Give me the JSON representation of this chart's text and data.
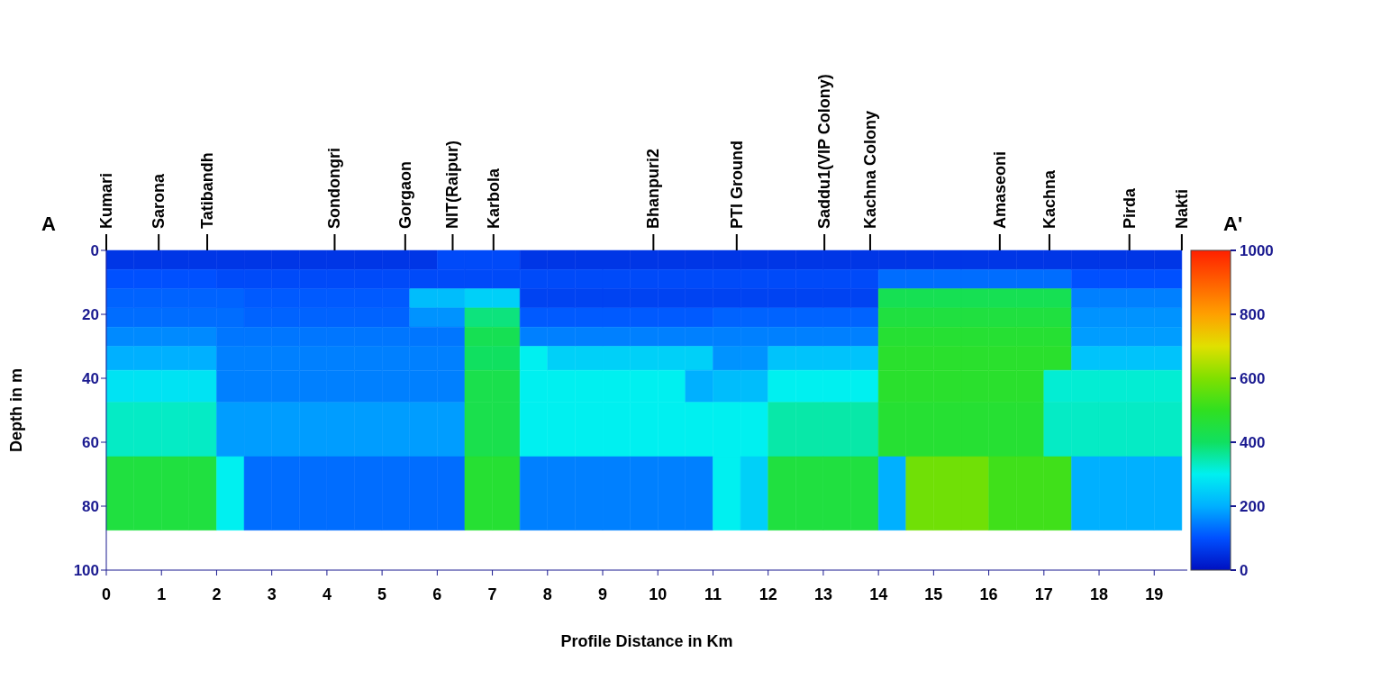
{
  "chart_data": {
    "type": "heatmap",
    "xlabel": "Profile Distance  in Km",
    "ylabel": "Depth in m",
    "annotations": [
      "A",
      "A'"
    ],
    "ref_lines": [
      {
        "axis": "x",
        "value": 0,
        "label": "Kumari"
      },
      {
        "axis": "x",
        "value": 0.95,
        "label": "Sarona"
      },
      {
        "axis": "x",
        "value": 1.83,
        "label": "Tatibandh"
      },
      {
        "axis": "x",
        "value": 4.14,
        "label": "Sondongri"
      },
      {
        "axis": "x",
        "value": 5.42,
        "label": "Gorgaon"
      },
      {
        "axis": "x",
        "value": 6.28,
        "label": "NIT(Raipur)"
      },
      {
        "axis": "x",
        "value": 7.02,
        "label": "Karbola"
      },
      {
        "axis": "x",
        "value": 9.92,
        "label": "Bhanpuri2"
      },
      {
        "axis": "x",
        "value": 11.43,
        "label": "PTI Ground"
      },
      {
        "axis": "x",
        "value": 13.02,
        "label": "Saddu1(VIP Colony)"
      },
      {
        "axis": "x",
        "value": 13.85,
        "label": "Kachna Colony"
      },
      {
        "axis": "x",
        "value": 16.2,
        "label": "Amaseoni"
      },
      {
        "axis": "x",
        "value": 17.1,
        "label": "Kachna"
      },
      {
        "axis": "x",
        "value": 18.55,
        "label": "Pirda"
      },
      {
        "axis": "x",
        "value": 19.5,
        "label": "Nakti"
      }
    ],
    "x": [
      0.25,
      0.75,
      1.25,
      1.75,
      2.25,
      2.75,
      3.25,
      3.75,
      4.25,
      4.75,
      5.25,
      5.75,
      6.25,
      6.75,
      7.25,
      7.75,
      8.25,
      8.75,
      9.25,
      9.75,
      10.25,
      10.75,
      11.25,
      11.75,
      12.25,
      12.75,
      13.25,
      13.75,
      14.25,
      14.75,
      15.25,
      15.75,
      16.25,
      16.75,
      17.25,
      17.75,
      18.25,
      18.75,
      19.25
    ],
    "y": [
      3,
      9,
      15,
      21,
      27,
      33,
      42,
      53,
      76
    ],
    "cells": [
      [
        60,
        60,
        60,
        60,
        60,
        60,
        60,
        60,
        60,
        60,
        60,
        60,
        90,
        90,
        90,
        60,
        60,
        60,
        60,
        60,
        60,
        60,
        60,
        60,
        60,
        60,
        60,
        60,
        60,
        60,
        60,
        60,
        60,
        60,
        60,
        60,
        60,
        60,
        60
      ],
      [
        100,
        100,
        100,
        100,
        90,
        90,
        90,
        90,
        90,
        90,
        90,
        90,
        90,
        90,
        90,
        90,
        90,
        90,
        90,
        90,
        90,
        90,
        90,
        90,
        90,
        90,
        90,
        90,
        130,
        130,
        130,
        130,
        130,
        130,
        130,
        100,
        100,
        100,
        100
      ],
      [
        120,
        120,
        120,
        120,
        120,
        110,
        110,
        110,
        110,
        110,
        110,
        220,
        220,
        250,
        250,
        80,
        80,
        80,
        80,
        80,
        80,
        80,
        80,
        80,
        80,
        80,
        80,
        80,
        420,
        420,
        420,
        420,
        420,
        420,
        420,
        150,
        150,
        150,
        150
      ],
      [
        130,
        130,
        130,
        130,
        130,
        120,
        120,
        120,
        120,
        120,
        120,
        170,
        170,
        380,
        380,
        110,
        110,
        110,
        110,
        110,
        110,
        110,
        120,
        120,
        120,
        120,
        120,
        120,
        450,
        450,
        450,
        450,
        450,
        450,
        450,
        170,
        170,
        170,
        170
      ],
      [
        160,
        160,
        160,
        160,
        140,
        140,
        140,
        140,
        140,
        140,
        140,
        140,
        140,
        420,
        420,
        150,
        150,
        150,
        150,
        150,
        150,
        150,
        150,
        150,
        150,
        150,
        150,
        150,
        470,
        470,
        470,
        470,
        470,
        470,
        470,
        180,
        180,
        180,
        180
      ],
      [
        200,
        200,
        200,
        200,
        150,
        150,
        150,
        150,
        150,
        150,
        150,
        150,
        150,
        400,
        400,
        300,
        250,
        250,
        250,
        250,
        250,
        250,
        170,
        170,
        230,
        230,
        230,
        230,
        480,
        480,
        480,
        480,
        480,
        480,
        480,
        230,
        230,
        230,
        230
      ],
      [
        280,
        280,
        280,
        280,
        150,
        150,
        150,
        150,
        150,
        150,
        150,
        150,
        150,
        430,
        430,
        300,
        300,
        300,
        300,
        300,
        300,
        200,
        220,
        220,
        300,
        300,
        300,
        300,
        480,
        480,
        480,
        480,
        480,
        480,
        320,
        320,
        320,
        320,
        320
      ],
      [
        330,
        330,
        330,
        330,
        180,
        180,
        180,
        180,
        180,
        180,
        180,
        180,
        180,
        430,
        430,
        300,
        300,
        300,
        300,
        300,
        300,
        300,
        300,
        300,
        350,
        350,
        350,
        350,
        470,
        470,
        470,
        470,
        470,
        470,
        330,
        330,
        330,
        330,
        330
      ],
      [
        450,
        450,
        450,
        450,
        300,
        130,
        130,
        130,
        130,
        130,
        130,
        130,
        130,
        470,
        470,
        150,
        150,
        150,
        150,
        150,
        150,
        150,
        300,
        250,
        450,
        450,
        450,
        450,
        200,
        580,
        580,
        580,
        520,
        520,
        520,
        200,
        200,
        200,
        200
      ]
    ],
    "xlim": [
      0,
      19.6
    ],
    "xticks": [
      0,
      1,
      2,
      3,
      4,
      5,
      6,
      7,
      8,
      9,
      10,
      11,
      12,
      13,
      14,
      15,
      16,
      17,
      18,
      19
    ],
    "ylim": [
      100,
      0
    ],
    "yticks": [
      0,
      20,
      40,
      60,
      80,
      100
    ],
    "clim": [
      0,
      1000
    ],
    "cticks": [
      0,
      200,
      400,
      600,
      800,
      1000
    ],
    "grid": false
  }
}
